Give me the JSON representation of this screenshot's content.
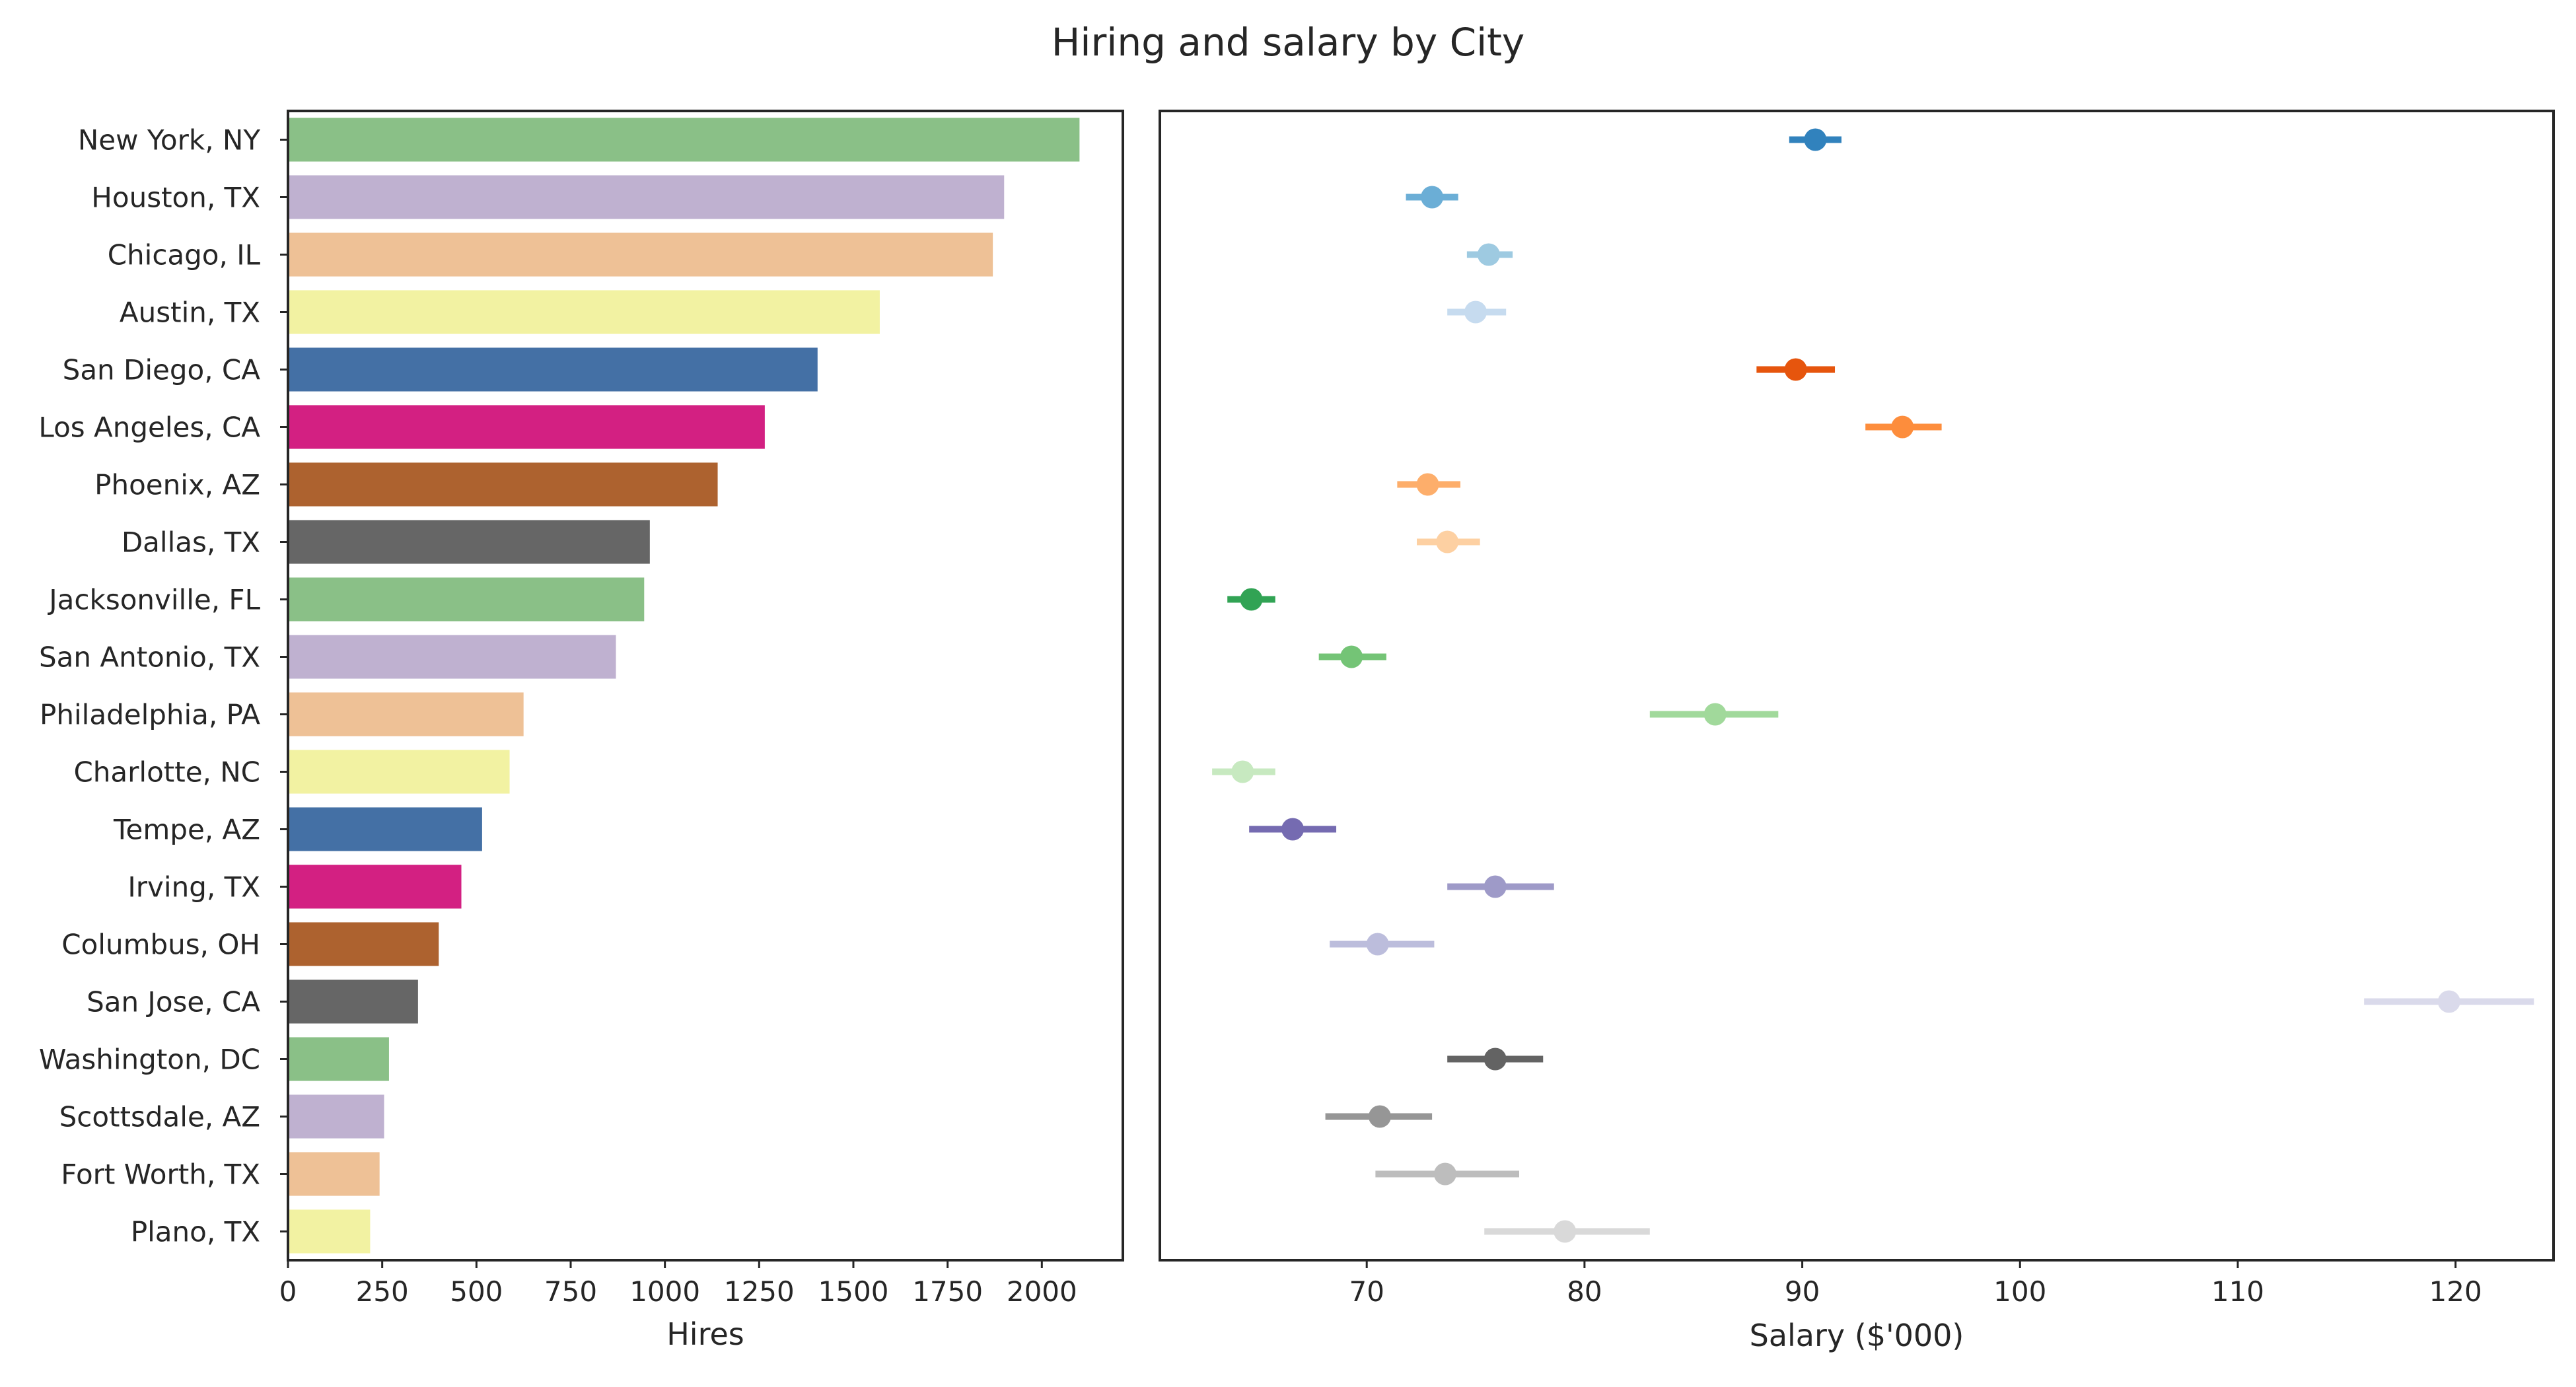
{
  "title": "Hiring and salary by City",
  "chart_data": [
    {
      "type": "bar",
      "orientation": "horizontal",
      "xlabel": "Hires",
      "ylabel": "",
      "xlim": [
        0,
        2215
      ],
      "xticks": [
        0,
        250,
        500,
        750,
        1000,
        1250,
        1500,
        1750,
        2000
      ],
      "grid": false,
      "categories": [
        "New York, NY",
        "Houston, TX",
        "Chicago, IL",
        "Austin, TX",
        "San Diego, CA",
        "Los Angeles, CA",
        "Phoenix, AZ",
        "Dallas, TX",
        "Jacksonville, FL",
        "San Antonio, TX",
        "Philadelphia, PA",
        "Charlotte, NC",
        "Tempe, AZ",
        "Irving, TX",
        "Columbus, OH",
        "San Jose, CA",
        "Washington, DC",
        "Scottsdale, AZ",
        "Fort Worth, TX",
        "Plano, TX"
      ],
      "values": [
        2100,
        1900,
        1870,
        1570,
        1405,
        1265,
        1140,
        960,
        945,
        870,
        625,
        588,
        515,
        460,
        400,
        345,
        268,
        255,
        243,
        218
      ],
      "colors": [
        "#8ac087",
        "#bfb1d0",
        "#eec196",
        "#f2f2a2",
        "#4470a5",
        "#d32082",
        "#ad622f",
        "#666666",
        "#8ac087",
        "#bfb1d0",
        "#eec196",
        "#f2f2a2",
        "#4470a5",
        "#d32082",
        "#ad622f",
        "#666666",
        "#8ac087",
        "#bfb1d0",
        "#eec196",
        "#f2f2a2"
      ]
    },
    {
      "type": "scatter",
      "subtype": "point-with-error-bar",
      "xlabel": "Salary ($'000)",
      "ylabel": "",
      "xlim": [
        60.5,
        124.5
      ],
      "xticks": [
        70,
        80,
        90,
        100,
        110,
        120
      ],
      "grid": false,
      "categories": [
        "New York, NY",
        "Houston, TX",
        "Chicago, IL",
        "Austin, TX",
        "San Diego, CA",
        "Los Angeles, CA",
        "Phoenix, AZ",
        "Dallas, TX",
        "Jacksonville, FL",
        "San Antonio, TX",
        "Philadelphia, PA",
        "Charlotte, NC",
        "Tempe, AZ",
        "Irving, TX",
        "Columbus, OH",
        "San Jose, CA",
        "Washington, DC",
        "Scottsdale, AZ",
        "Fort Worth, TX",
        "Plano, TX"
      ],
      "values": [
        90.6,
        73.0,
        75.6,
        75.0,
        89.7,
        94.6,
        72.8,
        73.7,
        64.7,
        69.3,
        86.0,
        64.3,
        66.6,
        75.9,
        70.5,
        119.7,
        75.9,
        70.6,
        73.6,
        79.1
      ],
      "lower": [
        89.4,
        71.8,
        74.6,
        73.7,
        87.9,
        92.9,
        71.4,
        72.3,
        63.6,
        67.8,
        83.0,
        62.9,
        64.6,
        73.7,
        68.3,
        115.8,
        73.7,
        68.1,
        70.4,
        75.4
      ],
      "upper": [
        91.8,
        74.2,
        76.7,
        76.4,
        91.5,
        96.4,
        74.3,
        75.2,
        65.8,
        70.9,
        88.9,
        65.8,
        68.6,
        78.6,
        73.1,
        123.6,
        78.1,
        73.0,
        77.0,
        83.0
      ],
      "colors": [
        "#3182bd",
        "#6baed6",
        "#9ecae1",
        "#c6dbef",
        "#e6550d",
        "#fd8d3c",
        "#fdae6b",
        "#fdd0a2",
        "#31a354",
        "#74c476",
        "#a1d99b",
        "#c7e9c0",
        "#756bb1",
        "#9e9ac8",
        "#bcbddc",
        "#dadaeb",
        "#636363",
        "#969696",
        "#bdbdbd",
        "#d9d9d9"
      ]
    }
  ]
}
